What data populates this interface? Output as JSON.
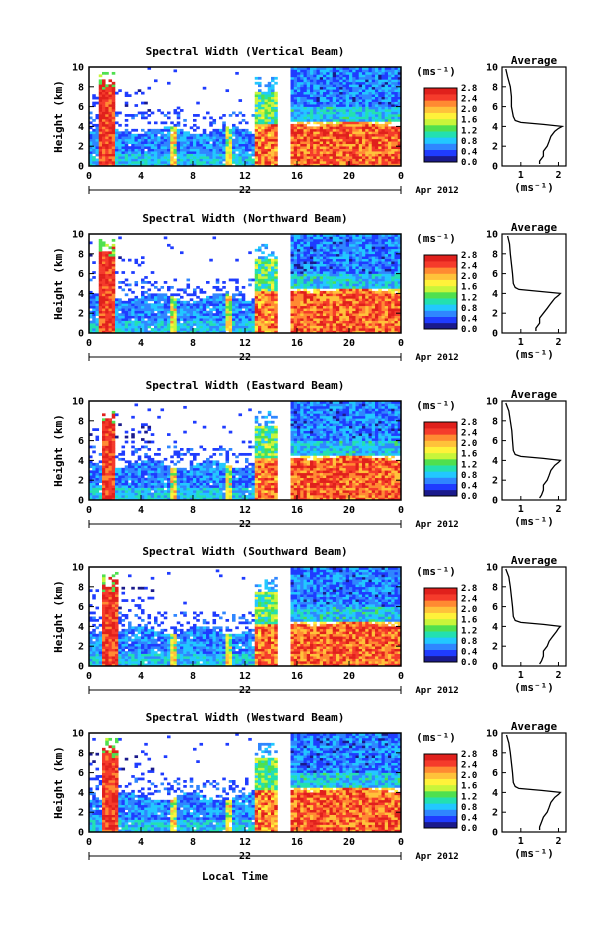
{
  "chart_data": {
    "type": "heatmap",
    "xlabel": "Local Time",
    "ylabel": "Height (km)",
    "x_ticks": [
      "0",
      "4",
      "8",
      "12",
      "16",
      "20",
      "0"
    ],
    "x_range_hours": [
      0,
      24
    ],
    "y_ticks": [
      "0",
      "2",
      "4",
      "6",
      "8",
      "10"
    ],
    "ylim": [
      0,
      10
    ],
    "date_day": "22",
    "date_month_year": "Apr 2012",
    "colorbar": {
      "unit_label": "(ms⁻¹)",
      "tick_labels": [
        "2.8",
        "2.4",
        "2.0",
        "1.6",
        "1.2",
        "0.8",
        "0.4",
        "0.0"
      ],
      "range": [
        0,
        2.8
      ],
      "colors": [
        "#1a1a8c",
        "#1f3cff",
        "#2f86ff",
        "#22c8ff",
        "#23e0b0",
        "#4fe04f",
        "#c8f53a",
        "#fff23a",
        "#ffc23a",
        "#ff8a32",
        "#f53b2b",
        "#e0201c"
      ]
    },
    "average": {
      "title": "Average",
      "xlabel": "(ms⁻¹)",
      "x_ticks": [
        "1",
        "2"
      ],
      "xlim": [
        0.5,
        2.2
      ],
      "heights_km": [
        0.2,
        0.5,
        1.0,
        1.5,
        2.0,
        2.5,
        3.0,
        3.5,
        3.8,
        4.0,
        4.2,
        4.4,
        4.6,
        5.0,
        6.0,
        7.0,
        8.0,
        9.0,
        9.8
      ],
      "profiles": [
        {
          "beam": "Vertical",
          "values": [
            1.5,
            1.5,
            1.6,
            1.6,
            1.7,
            1.75,
            1.8,
            1.9,
            2.0,
            2.1,
            1.6,
            1.0,
            0.85,
            0.8,
            0.75,
            0.75,
            0.72,
            0.65,
            0.6
          ]
        },
        {
          "beam": "Northward",
          "values": [
            1.4,
            1.4,
            1.5,
            1.5,
            1.6,
            1.7,
            1.8,
            1.9,
            2.0,
            2.05,
            1.5,
            0.95,
            0.85,
            0.8,
            0.78,
            0.75,
            0.72,
            0.7,
            0.65
          ]
        },
        {
          "beam": "Eastward",
          "values": [
            1.5,
            1.55,
            1.6,
            1.6,
            1.7,
            1.75,
            1.8,
            1.9,
            2.0,
            2.05,
            1.6,
            1.0,
            0.85,
            0.8,
            0.78,
            0.76,
            0.72,
            0.68,
            0.6
          ]
        },
        {
          "beam": "Southward",
          "values": [
            1.5,
            1.55,
            1.6,
            1.6,
            1.7,
            1.75,
            1.85,
            1.95,
            2.0,
            2.05,
            1.6,
            1.0,
            0.85,
            0.8,
            0.78,
            0.75,
            0.72,
            0.68,
            0.6
          ]
        },
        {
          "beam": "Westward",
          "values": [
            1.5,
            1.5,
            1.55,
            1.6,
            1.7,
            1.75,
            1.8,
            1.9,
            2.0,
            2.05,
            1.55,
            0.95,
            0.85,
            0.8,
            0.78,
            0.75,
            0.72,
            0.68,
            0.62
          ]
        }
      ]
    },
    "panels": [
      {
        "title": "Spectral Width (Vertical Beam)",
        "beam": "Vertical"
      },
      {
        "title": "Spectral Width (Northward Beam)",
        "beam": "Northward"
      },
      {
        "title": "Spectral Width (Eastward Beam)",
        "beam": "Eastward"
      },
      {
        "title": "Spectral Width (Southward Beam)",
        "beam": "Southward"
      },
      {
        "title": "Spectral Width (Westward Beam)",
        "beam": "Westward"
      }
    ],
    "data_gap_hours": [
      14.5,
      15.5
    ]
  }
}
